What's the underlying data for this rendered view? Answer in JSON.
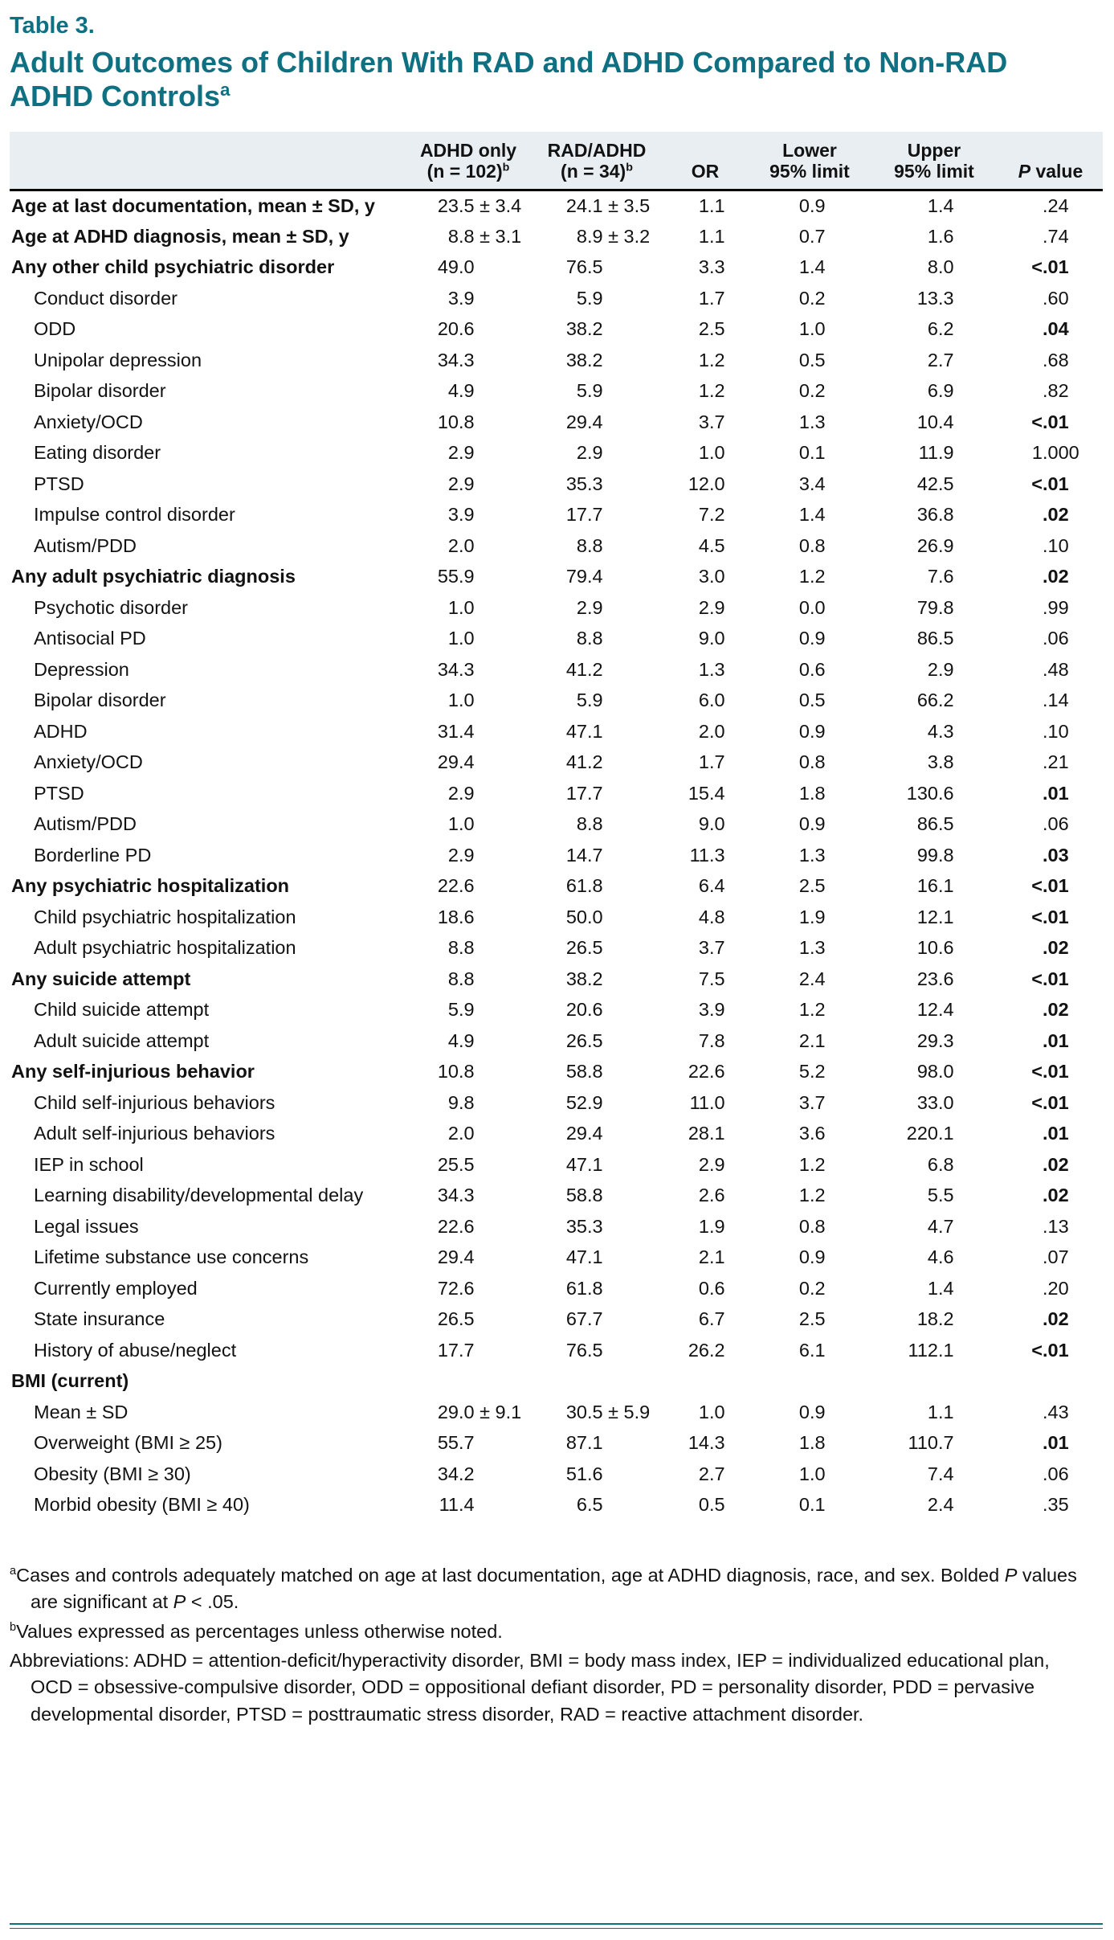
{
  "colors": {
    "accent": "#0f7082",
    "header_bg": "#e8eef2",
    "text": "#121212"
  },
  "table_label": "Table 3.",
  "title": {
    "text": "Adult Outcomes of Children With RAD and ADHD Compared to Non-RAD ADHD Controls",
    "sup": "a"
  },
  "columns": [
    {
      "line1": "ADHD only",
      "line2": "(n = 102)",
      "sup": "b"
    },
    {
      "line1": "RAD/ADHD",
      "line2": "(n = 34)",
      "sup": "b"
    },
    {
      "line1": "OR"
    },
    {
      "line1": "Lower",
      "line2": "95% limit"
    },
    {
      "line1": "Upper",
      "line2": "95% limit"
    },
    {
      "line1": " value",
      "italic_prefix": "P"
    }
  ],
  "rows": [
    {
      "label": "Age at last documentation, mean ± SD, y",
      "bold": true,
      "indent": 0,
      "cells": [
        "23.5 ± 3.4",
        "24.1 ± 3.5",
        "1.1",
        "0.9",
        "1.4"
      ],
      "p": ".24",
      "p_bold": false
    },
    {
      "label": "Age at ADHD diagnosis, mean ± SD, y",
      "bold": true,
      "indent": 0,
      "cells": [
        "8.8 ± 3.1",
        "8.9 ± 3.2",
        "1.1",
        "0.7",
        "1.6"
      ],
      "p": ".74",
      "p_bold": false
    },
    {
      "label": "Any other child psychiatric disorder",
      "bold": true,
      "indent": 0,
      "cells": [
        "49.0",
        "76.5",
        "3.3",
        "1.4",
        "8.0"
      ],
      "p": "<.01",
      "p_bold": true
    },
    {
      "label": "Conduct disorder",
      "bold": false,
      "indent": 1,
      "cells": [
        "3.9",
        "5.9",
        "1.7",
        "0.2",
        "13.3"
      ],
      "p": ".60",
      "p_bold": false
    },
    {
      "label": "ODD",
      "bold": false,
      "indent": 1,
      "cells": [
        "20.6",
        "38.2",
        "2.5",
        "1.0",
        "6.2"
      ],
      "p": ".04",
      "p_bold": true
    },
    {
      "label": "Unipolar depression",
      "bold": false,
      "indent": 1,
      "cells": [
        "34.3",
        "38.2",
        "1.2",
        "0.5",
        "2.7"
      ],
      "p": ".68",
      "p_bold": false
    },
    {
      "label": "Bipolar disorder",
      "bold": false,
      "indent": 1,
      "cells": [
        "4.9",
        "5.9",
        "1.2",
        "0.2",
        "6.9"
      ],
      "p": ".82",
      "p_bold": false
    },
    {
      "label": "Anxiety/OCD",
      "bold": false,
      "indent": 1,
      "cells": [
        "10.8",
        "29.4",
        "3.7",
        "1.3",
        "10.4"
      ],
      "p": "<.01",
      "p_bold": true
    },
    {
      "label": "Eating disorder",
      "bold": false,
      "indent": 1,
      "cells": [
        "2.9",
        "2.9",
        "1.0",
        "0.1",
        "11.9"
      ],
      "p": "1.000",
      "p_bold": false
    },
    {
      "label": "PTSD",
      "bold": false,
      "indent": 1,
      "cells": [
        "2.9",
        "35.3",
        "12.0",
        "3.4",
        "42.5"
      ],
      "p": "<.01",
      "p_bold": true
    },
    {
      "label": "Impulse control disorder",
      "bold": false,
      "indent": 1,
      "cells": [
        "3.9",
        "17.7",
        "7.2",
        "1.4",
        "36.8"
      ],
      "p": ".02",
      "p_bold": true
    },
    {
      "label": "Autism/PDD",
      "bold": false,
      "indent": 1,
      "cells": [
        "2.0",
        "8.8",
        "4.5",
        "0.8",
        "26.9"
      ],
      "p": ".10",
      "p_bold": false
    },
    {
      "label": "Any adult psychiatric diagnosis",
      "bold": true,
      "indent": 0,
      "cells": [
        "55.9",
        "79.4",
        "3.0",
        "1.2",
        "7.6"
      ],
      "p": ".02",
      "p_bold": true
    },
    {
      "label": "Psychotic disorder",
      "bold": false,
      "indent": 1,
      "cells": [
        "1.0",
        "2.9",
        "2.9",
        "0.0",
        "79.8"
      ],
      "p": ".99",
      "p_bold": false
    },
    {
      "label": "Antisocial PD",
      "bold": false,
      "indent": 1,
      "cells": [
        "1.0",
        "8.8",
        "9.0",
        "0.9",
        "86.5"
      ],
      "p": ".06",
      "p_bold": false
    },
    {
      "label": "Depression",
      "bold": false,
      "indent": 1,
      "cells": [
        "34.3",
        "41.2",
        "1.3",
        "0.6",
        "2.9"
      ],
      "p": ".48",
      "p_bold": false
    },
    {
      "label": "Bipolar disorder",
      "bold": false,
      "indent": 1,
      "cells": [
        "1.0",
        "5.9",
        "6.0",
        "0.5",
        "66.2"
      ],
      "p": ".14",
      "p_bold": false
    },
    {
      "label": "ADHD",
      "bold": false,
      "indent": 1,
      "cells": [
        "31.4",
        "47.1",
        "2.0",
        "0.9",
        "4.3"
      ],
      "p": ".10",
      "p_bold": false
    },
    {
      "label": "Anxiety/OCD",
      "bold": false,
      "indent": 1,
      "cells": [
        "29.4",
        "41.2",
        "1.7",
        "0.8",
        "3.8"
      ],
      "p": ".21",
      "p_bold": false
    },
    {
      "label": "PTSD",
      "bold": false,
      "indent": 1,
      "cells": [
        "2.9",
        "17.7",
        "15.4",
        "1.8",
        "130.6"
      ],
      "p": ".01",
      "p_bold": true
    },
    {
      "label": "Autism/PDD",
      "bold": false,
      "indent": 1,
      "cells": [
        "1.0",
        "8.8",
        "9.0",
        "0.9",
        "86.5"
      ],
      "p": ".06",
      "p_bold": false
    },
    {
      "label": "Borderline PD",
      "bold": false,
      "indent": 1,
      "cells": [
        "2.9",
        "14.7",
        "11.3",
        "1.3",
        "99.8"
      ],
      "p": ".03",
      "p_bold": true
    },
    {
      "label": "Any psychiatric hospitalization",
      "bold": true,
      "indent": 0,
      "cells": [
        "22.6",
        "61.8",
        "6.4",
        "2.5",
        "16.1"
      ],
      "p": "<.01",
      "p_bold": true
    },
    {
      "label": "Child psychiatric hospitalization",
      "bold": false,
      "indent": 1,
      "cells": [
        "18.6",
        "50.0",
        "4.8",
        "1.9",
        "12.1"
      ],
      "p": "<.01",
      "p_bold": true
    },
    {
      "label": "Adult psychiatric hospitalization",
      "bold": false,
      "indent": 1,
      "cells": [
        "8.8",
        "26.5",
        "3.7",
        "1.3",
        "10.6"
      ],
      "p": ".02",
      "p_bold": true
    },
    {
      "label": "Any suicide attempt",
      "bold": true,
      "indent": 0,
      "cells": [
        "8.8",
        "38.2",
        "7.5",
        "2.4",
        "23.6"
      ],
      "p": "<.01",
      "p_bold": true
    },
    {
      "label": "Child suicide attempt",
      "bold": false,
      "indent": 1,
      "cells": [
        "5.9",
        "20.6",
        "3.9",
        "1.2",
        "12.4"
      ],
      "p": ".02",
      "p_bold": true
    },
    {
      "label": "Adult suicide attempt",
      "bold": false,
      "indent": 1,
      "cells": [
        "4.9",
        "26.5",
        "7.8",
        "2.1",
        "29.3"
      ],
      "p": ".01",
      "p_bold": true
    },
    {
      "label": "Any self-injurious behavior",
      "bold": true,
      "indent": 0,
      "cells": [
        "10.8",
        "58.8",
        "22.6",
        "5.2",
        "98.0"
      ],
      "p": "<.01",
      "p_bold": true
    },
    {
      "label": "Child self-injurious behaviors",
      "bold": false,
      "indent": 1,
      "cells": [
        "9.8",
        "52.9",
        "11.0",
        "3.7",
        "33.0"
      ],
      "p": "<.01",
      "p_bold": true
    },
    {
      "label": "Adult self-injurious behaviors",
      "bold": false,
      "indent": 1,
      "cells": [
        "2.0",
        "29.4",
        "28.1",
        "3.6",
        "220.1"
      ],
      "p": ".01",
      "p_bold": true
    },
    {
      "label": "IEP in school",
      "bold": false,
      "indent": 1,
      "cells": [
        "25.5",
        "47.1",
        "2.9",
        "1.2",
        "6.8"
      ],
      "p": ".02",
      "p_bold": true
    },
    {
      "label": "Learning disability/developmental delay",
      "bold": false,
      "indent": 1,
      "cells": [
        "34.3",
        "58.8",
        "2.6",
        "1.2",
        "5.5"
      ],
      "p": ".02",
      "p_bold": true
    },
    {
      "label": "Legal issues",
      "bold": false,
      "indent": 1,
      "cells": [
        "22.6",
        "35.3",
        "1.9",
        "0.8",
        "4.7"
      ],
      "p": ".13",
      "p_bold": false
    },
    {
      "label": "Lifetime substance use concerns",
      "bold": false,
      "indent": 1,
      "cells": [
        "29.4",
        "47.1",
        "2.1",
        "0.9",
        "4.6"
      ],
      "p": ".07",
      "p_bold": false
    },
    {
      "label": "Currently employed",
      "bold": false,
      "indent": 1,
      "cells": [
        "72.6",
        "61.8",
        "0.6",
        "0.2",
        "1.4"
      ],
      "p": ".20",
      "p_bold": false
    },
    {
      "label": "State insurance",
      "bold": false,
      "indent": 1,
      "cells": [
        "26.5",
        "67.7",
        "6.7",
        "2.5",
        "18.2"
      ],
      "p": ".02",
      "p_bold": true
    },
    {
      "label": "History of abuse/neglect",
      "bold": false,
      "indent": 1,
      "cells": [
        "17.7",
        "76.5",
        "26.2",
        "6.1",
        "112.1"
      ],
      "p": "<.01",
      "p_bold": true
    },
    {
      "label": "BMI (current)",
      "bold": true,
      "indent": 0,
      "cells": [
        "",
        "",
        "",
        "",
        ""
      ],
      "p": "",
      "p_bold": false
    },
    {
      "label": "Mean ± SD",
      "bold": false,
      "indent": 1,
      "cells": [
        "29.0 ± 9.1",
        "30.5 ± 5.9",
        "1.0",
        "0.9",
        "1.1"
      ],
      "p": ".43",
      "p_bold": false
    },
    {
      "label": "Overweight (BMI ≥ 25)",
      "bold": false,
      "indent": 1,
      "cells": [
        "55.7",
        "87.1",
        "14.3",
        "1.8",
        "110.7"
      ],
      "p": ".01",
      "p_bold": true
    },
    {
      "label": "Obesity (BMI ≥ 30)",
      "bold": false,
      "indent": 1,
      "cells": [
        "34.2",
        "51.6",
        "2.7",
        "1.0",
        "7.4"
      ],
      "p": ".06",
      "p_bold": false
    },
    {
      "label": "Morbid obesity (BMI ≥ 40)",
      "bold": false,
      "indent": 1,
      "cells": [
        "11.4",
        "6.5",
        "0.5",
        "0.1",
        "2.4"
      ],
      "p": ".35",
      "p_bold": false
    }
  ],
  "footnotes": [
    {
      "sup": "a",
      "segments": [
        {
          "t": "Cases and controls adequately matched on age at last documentation, age at ADHD diagnosis, race, and sex. Bolded "
        },
        {
          "t": "P",
          "i": true
        },
        {
          "t": " values are significant at "
        },
        {
          "t": "P",
          "i": true
        },
        {
          "t": " < .05."
        }
      ]
    },
    {
      "sup": "b",
      "segments": [
        {
          "t": "Values expressed as percentages unless otherwise noted."
        }
      ]
    },
    {
      "segments": [
        {
          "t": "Abbreviations: ADHD = attention-deficit/hyperactivity disorder, BMI = body mass index, IEP = individualized educational plan, OCD = obsessive-compulsive disorder, ODD = oppositional defiant disorder, PD = personality disorder, PDD = pervasive developmental disorder, PTSD = posttraumatic stress disorder, RAD = reactive attachment disorder."
        }
      ]
    }
  ]
}
